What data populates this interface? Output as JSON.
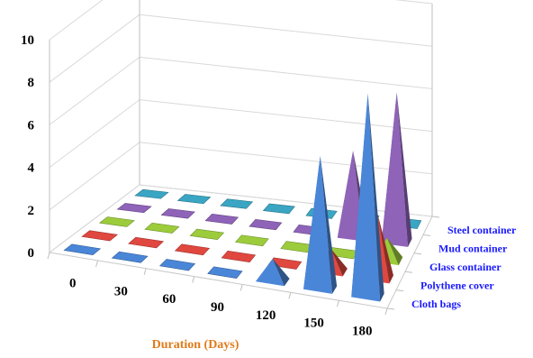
{
  "chart_data": {
    "type": "bar",
    "subtype": "3d-pyramid",
    "title": "",
    "xlabel": "Duration (Days)",
    "ylabel": "",
    "ylim": [
      0,
      10
    ],
    "yticks": [
      "0",
      "2",
      "4",
      "6",
      "8",
      "10"
    ],
    "categories": [
      "0",
      "30",
      "60",
      "90",
      "120",
      "150",
      "180"
    ],
    "series": [
      {
        "name": "Cloth bags",
        "values": [
          0,
          0,
          0,
          0,
          1,
          6.2,
          9.5
        ],
        "color": "#4a86d8"
      },
      {
        "name": "Polythene cover",
        "values": [
          0,
          0,
          0,
          0,
          0,
          1,
          3
        ],
        "color": "#e0473f"
      },
      {
        "name": "Glass container",
        "values": [
          0,
          0,
          0,
          0,
          0,
          0,
          1
        ],
        "color": "#9ccc3c"
      },
      {
        "name": "Mud container",
        "values": [
          0,
          0,
          0,
          0,
          0,
          4,
          7
        ],
        "color": "#8e63b8"
      },
      {
        "name": "Steel container",
        "values": [
          0,
          0,
          0,
          0,
          0,
          0,
          0
        ],
        "color": "#3aa6c4"
      }
    ],
    "grid": true,
    "legend": "none"
  }
}
